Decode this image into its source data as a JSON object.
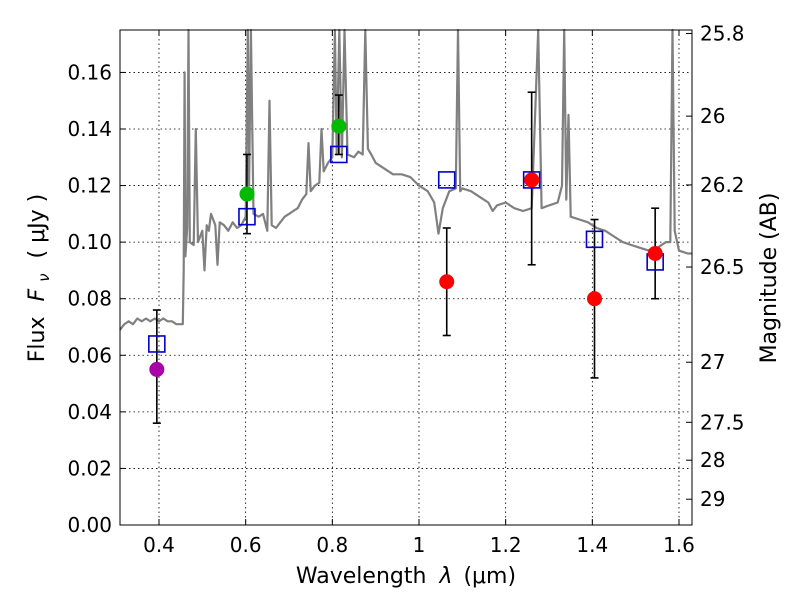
{
  "chart_data": {
    "type": "scatter",
    "xlabel_prefix": "Wavelength",
    "xlabel_symbol": "λ",
    "xlabel_unit": "(μm)",
    "ylabel_prefix": "Flux",
    "ylabel_symbol": "F",
    "ylabel_sub": "ν",
    "ylabel_unit": "( μJy )",
    "ylabel_right": "Magnitude (AB)",
    "xlim": [
      0.31,
      1.63
    ],
    "ylim": [
      0.0,
      0.175
    ],
    "grid": true,
    "x_ticks": [
      {
        "value": 0.4,
        "label": "0.4"
      },
      {
        "value": 0.6,
        "label": "0.6"
      },
      {
        "value": 0.8,
        "label": "0.8"
      },
      {
        "value": 1.0,
        "label": "1"
      },
      {
        "value": 1.2,
        "label": "1.2"
      },
      {
        "value": 1.4,
        "label": "1.4"
      },
      {
        "value": 1.6,
        "label": "1.6"
      }
    ],
    "y_ticks": [
      {
        "value": 0.0,
        "label": "0.00"
      },
      {
        "value": 0.02,
        "label": "0.02"
      },
      {
        "value": 0.04,
        "label": "0.04"
      },
      {
        "value": 0.06,
        "label": "0.06"
      },
      {
        "value": 0.08,
        "label": "0.08"
      },
      {
        "value": 0.1,
        "label": "0.10"
      },
      {
        "value": 0.12,
        "label": "0.12"
      },
      {
        "value": 0.14,
        "label": "0.14"
      },
      {
        "value": 0.16,
        "label": "0.16"
      }
    ],
    "mag_ticks": [
      {
        "mag": 25.8,
        "label": "25.8"
      },
      {
        "mag": 26.0,
        "label": "26"
      },
      {
        "mag": 26.2,
        "label": "26.2"
      },
      {
        "mag": 26.5,
        "label": "26.5"
      },
      {
        "mag": 27.0,
        "label": "27"
      },
      {
        "mag": 27.5,
        "label": "27.5"
      },
      {
        "mag": 28.0,
        "label": "28"
      },
      {
        "mag": 29.0,
        "label": "29"
      }
    ],
    "colors": {
      "model": "#808080",
      "model_points": "#0000cc",
      "error_bars": "#000000",
      "grid": "#000000"
    },
    "model_points": [
      {
        "x": 0.395,
        "y": 0.064
      },
      {
        "x": 0.603,
        "y": 0.109
      },
      {
        "x": 0.815,
        "y": 0.131
      },
      {
        "x": 1.064,
        "y": 0.122
      },
      {
        "x": 1.26,
        "y": 0.122
      },
      {
        "x": 1.405,
        "y": 0.101
      },
      {
        "x": 1.545,
        "y": 0.093
      }
    ],
    "observed": [
      {
        "x": 0.395,
        "y": 0.055,
        "lo": 0.036,
        "hi": 0.076,
        "color": "#aa00aa"
      },
      {
        "x": 0.603,
        "y": 0.117,
        "lo": 0.103,
        "hi": 0.131,
        "color": "#00bb00"
      },
      {
        "x": 0.815,
        "y": 0.141,
        "lo": 0.131,
        "hi": 0.152,
        "color": "#00bb00"
      },
      {
        "x": 1.064,
        "y": 0.086,
        "lo": 0.067,
        "hi": 0.105,
        "color": "#ff0000"
      },
      {
        "x": 1.26,
        "y": 0.122,
        "lo": 0.092,
        "hi": 0.153,
        "color": "#ff0000"
      },
      {
        "x": 1.405,
        "y": 0.08,
        "lo": 0.052,
        "hi": 0.108,
        "color": "#ff0000"
      },
      {
        "x": 1.545,
        "y": 0.096,
        "lo": 0.08,
        "hi": 0.112,
        "color": "#ff0000"
      }
    ],
    "model_spectrum": [
      [
        0.31,
        0.069
      ],
      [
        0.32,
        0.071
      ],
      [
        0.33,
        0.072
      ],
      [
        0.34,
        0.071
      ],
      [
        0.35,
        0.073
      ],
      [
        0.36,
        0.072
      ],
      [
        0.37,
        0.073
      ],
      [
        0.38,
        0.072
      ],
      [
        0.39,
        0.073
      ],
      [
        0.4,
        0.072
      ],
      [
        0.41,
        0.073
      ],
      [
        0.42,
        0.072
      ],
      [
        0.43,
        0.072
      ],
      [
        0.44,
        0.071
      ],
      [
        0.455,
        0.071
      ],
      [
        0.457,
        0.09
      ],
      [
        0.459,
        0.16
      ],
      [
        0.461,
        0.095
      ],
      [
        0.465,
        0.105
      ],
      [
        0.468,
        0.175
      ],
      [
        0.471,
        0.1
      ],
      [
        0.48,
        0.099
      ],
      [
        0.485,
        0.14
      ],
      [
        0.49,
        0.1
      ],
      [
        0.5,
        0.104
      ],
      [
        0.505,
        0.09
      ],
      [
        0.51,
        0.106
      ],
      [
        0.515,
        0.104
      ],
      [
        0.52,
        0.11
      ],
      [
        0.53,
        0.106
      ],
      [
        0.535,
        0.092
      ],
      [
        0.54,
        0.107
      ],
      [
        0.55,
        0.106
      ],
      [
        0.56,
        0.104
      ],
      [
        0.57,
        0.107
      ],
      [
        0.58,
        0.105
      ],
      [
        0.59,
        0.106
      ],
      [
        0.6,
        0.109
      ],
      [
        0.605,
        0.175
      ],
      [
        0.608,
        0.12
      ],
      [
        0.612,
        0.175
      ],
      [
        0.618,
        0.11
      ],
      [
        0.63,
        0.109
      ],
      [
        0.64,
        0.11
      ],
      [
        0.65,
        0.104
      ],
      [
        0.655,
        0.15
      ],
      [
        0.66,
        0.106
      ],
      [
        0.67,
        0.105
      ],
      [
        0.68,
        0.107
      ],
      [
        0.69,
        0.109
      ],
      [
        0.7,
        0.11
      ],
      [
        0.71,
        0.111
      ],
      [
        0.72,
        0.112
      ],
      [
        0.73,
        0.115
      ],
      [
        0.74,
        0.117
      ],
      [
        0.745,
        0.135
      ],
      [
        0.75,
        0.118
      ],
      [
        0.76,
        0.12
      ],
      [
        0.77,
        0.121
      ],
      [
        0.775,
        0.14
      ],
      [
        0.78,
        0.125
      ],
      [
        0.79,
        0.128
      ],
      [
        0.8,
        0.13
      ],
      [
        0.806,
        0.175
      ],
      [
        0.81,
        0.131
      ],
      [
        0.816,
        0.175
      ],
      [
        0.822,
        0.13
      ],
      [
        0.828,
        0.175
      ],
      [
        0.835,
        0.131
      ],
      [
        0.85,
        0.13
      ],
      [
        0.86,
        0.132
      ],
      [
        0.87,
        0.131
      ],
      [
        0.876,
        0.175
      ],
      [
        0.882,
        0.133
      ],
      [
        0.89,
        0.131
      ],
      [
        0.9,
        0.128
      ],
      [
        0.92,
        0.126
      ],
      [
        0.94,
        0.124
      ],
      [
        0.96,
        0.124
      ],
      [
        0.98,
        0.123
      ],
      [
        1.0,
        0.12
      ],
      [
        1.02,
        0.118
      ],
      [
        1.035,
        0.114
      ],
      [
        1.045,
        0.103
      ],
      [
        1.055,
        0.112
      ],
      [
        1.07,
        0.118
      ],
      [
        1.085,
        0.119
      ],
      [
        1.09,
        0.175
      ],
      [
        1.095,
        0.118
      ],
      [
        1.1,
        0.119
      ],
      [
        1.12,
        0.118
      ],
      [
        1.14,
        0.116
      ],
      [
        1.16,
        0.114
      ],
      [
        1.17,
        0.111
      ],
      [
        1.18,
        0.113
      ],
      [
        1.2,
        0.114
      ],
      [
        1.22,
        0.112
      ],
      [
        1.24,
        0.111
      ],
      [
        1.26,
        0.112
      ],
      [
        1.275,
        0.175
      ],
      [
        1.283,
        0.112
      ],
      [
        1.3,
        0.113
      ],
      [
        1.32,
        0.114
      ],
      [
        1.33,
        0.12
      ],
      [
        1.335,
        0.175
      ],
      [
        1.34,
        0.115
      ],
      [
        1.345,
        0.145
      ],
      [
        1.35,
        0.109
      ],
      [
        1.37,
        0.108
      ],
      [
        1.39,
        0.107
      ],
      [
        1.41,
        0.105
      ],
      [
        1.43,
        0.104
      ],
      [
        1.45,
        0.102
      ],
      [
        1.47,
        0.1
      ],
      [
        1.49,
        0.099
      ],
      [
        1.51,
        0.098
      ],
      [
        1.53,
        0.097
      ],
      [
        1.55,
        0.098
      ],
      [
        1.57,
        0.1
      ],
      [
        1.58,
        0.1
      ],
      [
        1.585,
        0.175
      ],
      [
        1.59,
        0.104
      ],
      [
        1.6,
        0.097
      ],
      [
        1.62,
        0.096
      ],
      [
        1.63,
        0.096
      ]
    ]
  }
}
